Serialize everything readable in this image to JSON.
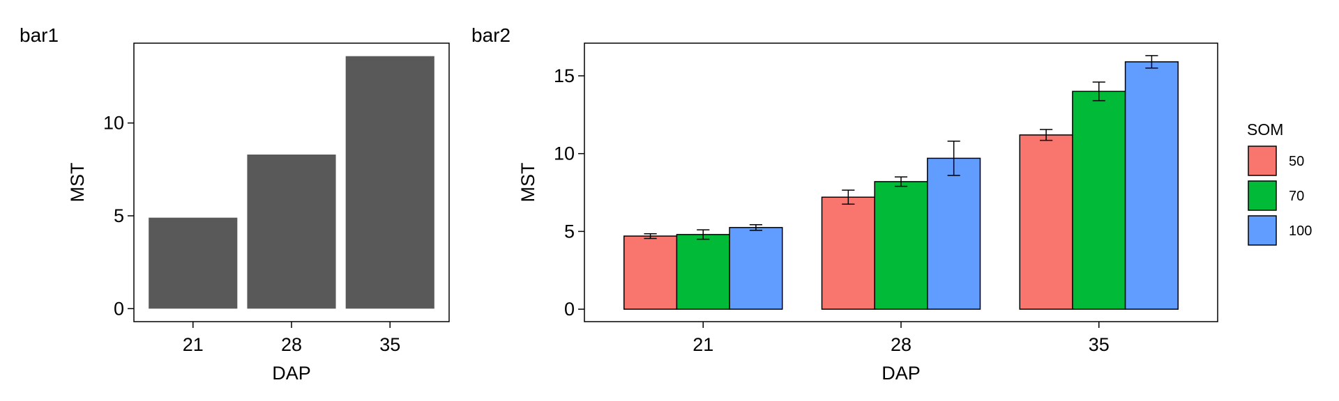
{
  "chart_data": [
    {
      "type": "bar",
      "tag": "bar1",
      "xlabel": "DAP",
      "ylabel": "MST",
      "categories": [
        "21",
        "28",
        "35"
      ],
      "values": [
        4.9,
        8.3,
        13.6
      ],
      "ylim": [
        -0.7,
        14.3
      ],
      "yticks": [
        0,
        5,
        10
      ],
      "bar_color": "#595959",
      "grid": false
    },
    {
      "type": "bar",
      "tag": "bar2",
      "xlabel": "DAP",
      "ylabel": "MST",
      "categories": [
        "21",
        "28",
        "35"
      ],
      "legend": {
        "title": "SOM",
        "position": "right"
      },
      "series": [
        {
          "name": "50",
          "color": "#F8766D",
          "values": [
            4.7,
            7.2,
            11.2
          ],
          "error": [
            0.15,
            0.45,
            0.35
          ]
        },
        {
          "name": "70",
          "color": "#00BA38",
          "values": [
            4.8,
            8.2,
            14.0
          ],
          "error": [
            0.3,
            0.3,
            0.6
          ]
        },
        {
          "name": "100",
          "color": "#619CFF",
          "values": [
            5.25,
            9.7,
            15.9
          ],
          "error": [
            0.18,
            1.1,
            0.4
          ]
        }
      ],
      "ylim": [
        -0.8,
        17.1
      ],
      "yticks": [
        0,
        5,
        10,
        15
      ],
      "grid": false
    }
  ]
}
